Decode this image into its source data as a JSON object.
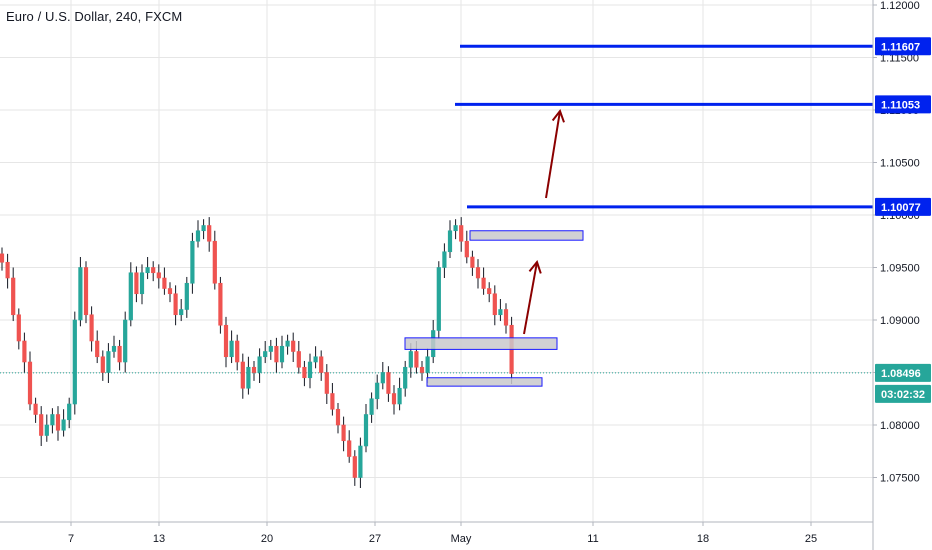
{
  "header": {
    "title": "Euro / U.S. Dollar, 240, FXCM"
  },
  "colors": {
    "up": "#26a69a",
    "down": "#ef5350",
    "candle_body_up": "#ffffff",
    "wick": "#131722",
    "level_line": "#0022ee",
    "arrow": "#8b0000",
    "zone_fill": "#c9c9cc",
    "zone_border": "#1a1aff",
    "grid": "#e6e6e6",
    "current_price_line": "#26a69a"
  },
  "chart_data": {
    "type": "candlestick",
    "symbol": "Euro / U.S. Dollar",
    "interval": "240",
    "source": "FXCM",
    "y_axis": {
      "range": [
        1.0725,
        1.1205
      ],
      "ticks": [
        "1.12000",
        "1.11500",
        "1.11000",
        "1.10500",
        "1.10000",
        "1.09500",
        "1.09000",
        "1.08500",
        "1.08000",
        "1.07500"
      ]
    },
    "x_axis": {
      "ticks": [
        "7",
        "13",
        "20",
        "27",
        "May",
        "11",
        "18",
        "25"
      ]
    },
    "price_labels": [
      {
        "value": 1.11607,
        "label": "1.11607",
        "style": "level"
      },
      {
        "value": 1.11053,
        "label": "1.11053",
        "style": "level"
      },
      {
        "value": 1.10077,
        "label": "1.10077",
        "style": "level"
      },
      {
        "value": 1.08496,
        "label": "1.08496",
        "style": "current"
      },
      {
        "label": "03:02:32",
        "style": "timer"
      }
    ],
    "horizontal_levels": [
      1.11607,
      1.11053,
      1.10077
    ],
    "zones": [
      {
        "low": 1.0976,
        "high": 1.0985
      },
      {
        "low": 1.0872,
        "high": 1.0883
      },
      {
        "low": 1.0837,
        "high": 1.0845
      }
    ],
    "closes": [
      1.0955,
      1.094,
      1.0905,
      1.088,
      1.086,
      1.082,
      1.081,
      1.079,
      1.08,
      1.081,
      1.0795,
      1.0805,
      1.082,
      1.09,
      1.095,
      1.0905,
      1.088,
      1.0865,
      1.085,
      1.087,
      1.0875,
      1.086,
      1.09,
      1.0945,
      1.0925,
      1.0945,
      1.095,
      1.0945,
      1.094,
      1.093,
      1.0925,
      1.0905,
      1.091,
      1.0935,
      1.0975,
      1.0985,
      1.099,
      1.0975,
      1.0935,
      1.0895,
      1.0865,
      1.088,
      1.086,
      1.0835,
      1.0855,
      1.085,
      1.0865,
      1.087,
      1.0875,
      1.086,
      1.0875,
      1.088,
      1.087,
      1.0855,
      1.0845,
      1.086,
      1.0865,
      1.085,
      1.083,
      1.0815,
      1.08,
      1.0785,
      1.077,
      1.075,
      1.078,
      1.081,
      1.0825,
      1.084,
      1.085,
      1.083,
      1.082,
      1.0835,
      1.0855,
      1.087,
      1.0855,
      1.085,
      1.0865,
      1.089,
      1.095,
      1.0965,
      1.0985,
      1.099,
      1.0975,
      1.096,
      1.095,
      1.094,
      1.093,
      1.0925,
      1.0905,
      1.091,
      1.0895,
      1.0849
    ]
  }
}
